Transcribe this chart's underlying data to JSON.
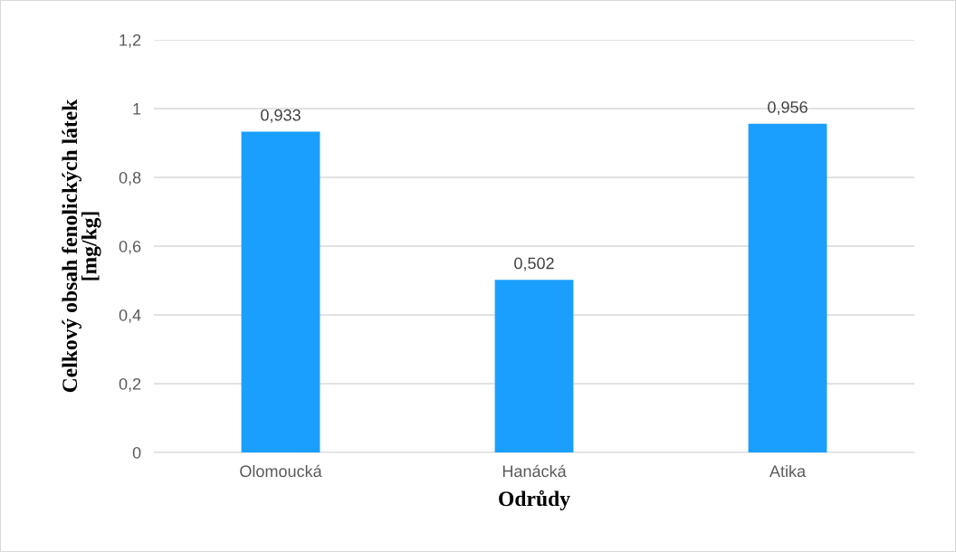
{
  "chart_data": {
    "type": "bar",
    "xlabel": "Odrůdy",
    "ylabel": "Celkový obsah fenolických látek\n[mg/kg]",
    "categories": [
      "Olomoucká",
      "Hanácká",
      "Atika"
    ],
    "values": [
      0.933,
      0.502,
      0.956
    ],
    "value_labels": [
      "0,933",
      "0,502",
      "0,956"
    ],
    "color": "#1a9fff",
    "ylim": [
      0,
      1.2
    ],
    "yticks": [
      0,
      {
        "value": 0.2,
        "label": "0,2"
      },
      {
        "value": 0.4,
        "label": "0,4"
      },
      {
        "value": 0.6,
        "label": "0,6"
      },
      {
        "value": 0.8,
        "label": "0,8"
      },
      1,
      {
        "value": 1.2,
        "label": "1,2"
      }
    ],
    "grid": "y"
  }
}
